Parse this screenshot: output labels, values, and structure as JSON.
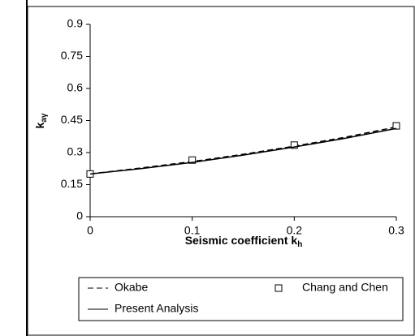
{
  "chart_data": {
    "type": "line",
    "y_label": "k",
    "y_label_sub": "aγ",
    "x_label": "Seismic coefficient k",
    "x_label_sub": "h",
    "xlim": [
      0,
      0.3
    ],
    "xticks": [
      0,
      0.1,
      0.2,
      0.3
    ],
    "ylim": [
      0,
      0.9
    ],
    "yticks": [
      0,
      0.15,
      0.3,
      0.45,
      0.6,
      0.75,
      0.9
    ],
    "grid": false,
    "series": [
      {
        "name": "Okabe",
        "color": "#000000",
        "style": "dashed",
        "x": [
          0,
          0.05,
          0.1,
          0.15,
          0.2,
          0.25,
          0.3
        ],
        "values": [
          0.2,
          0.228,
          0.258,
          0.292,
          0.33,
          0.372,
          0.42
        ]
      },
      {
        "name": "Chang and Chen",
        "color": "#000000",
        "style": "marker",
        "x": [
          0,
          0.1,
          0.2,
          0.3
        ],
        "values": [
          0.2,
          0.265,
          0.335,
          0.425
        ]
      },
      {
        "name": "Present Analysis",
        "color": "#000000",
        "style": "solid",
        "x": [
          0,
          0.05,
          0.1,
          0.15,
          0.2,
          0.25,
          0.3
        ],
        "values": [
          0.2,
          0.225,
          0.254,
          0.288,
          0.326,
          0.367,
          0.413
        ]
      }
    ]
  }
}
